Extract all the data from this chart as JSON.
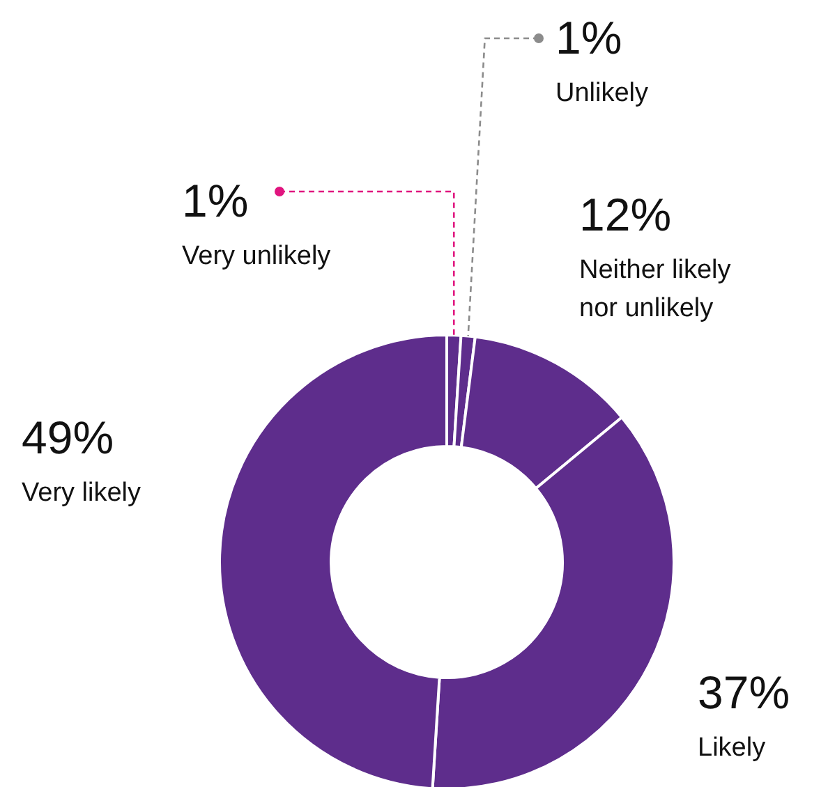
{
  "chart_data": {
    "type": "donut",
    "categories": [
      "Very unlikely",
      "Unlikely",
      "Neither likely nor unlikely",
      "Likely",
      "Very likely"
    ],
    "values": [
      1,
      1,
      12,
      37,
      49
    ],
    "value_labels": [
      "1%",
      "1%",
      "12%",
      "37%",
      "49%"
    ],
    "colors": [
      "#5e2d8c",
      "#5e2d8c",
      "#5e2d8c",
      "#5e2d8c",
      "#5e2d8c"
    ]
  }
}
